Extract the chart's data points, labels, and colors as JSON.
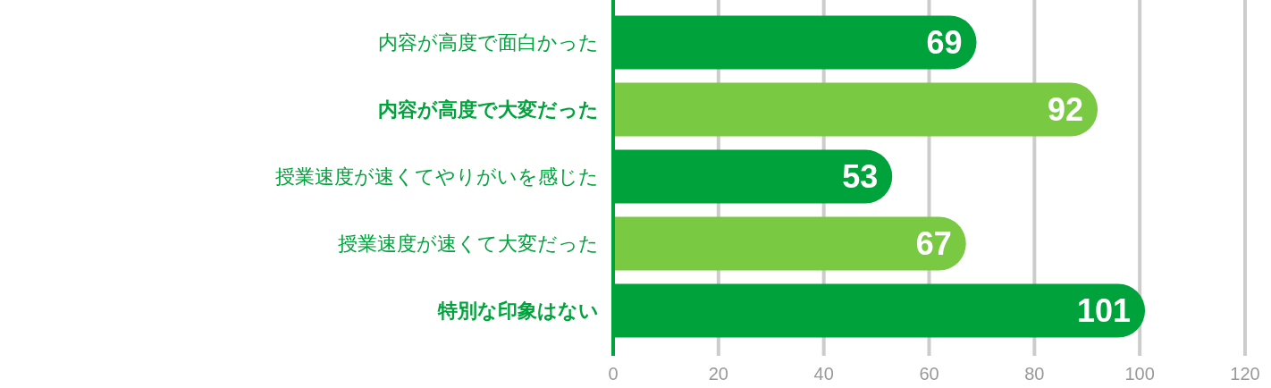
{
  "chart_data": {
    "type": "bar",
    "orientation": "horizontal",
    "categories": [
      "内容が高度で面白かった",
      "内容が高度で大変だった",
      "授業速度が速くてやりがいを感じた",
      "授業速度が速くて大変だった",
      "特別な印象はない"
    ],
    "values": [
      69,
      92,
      53,
      67,
      101
    ],
    "colors": [
      "#00a23c",
      "#7ac943",
      "#00a23c",
      "#7ac943",
      "#00a23c"
    ],
    "xlim": [
      0,
      120
    ],
    "xticks": [
      0,
      20,
      40,
      60,
      80,
      100,
      120
    ],
    "grid": "x",
    "data_labels": true
  }
}
